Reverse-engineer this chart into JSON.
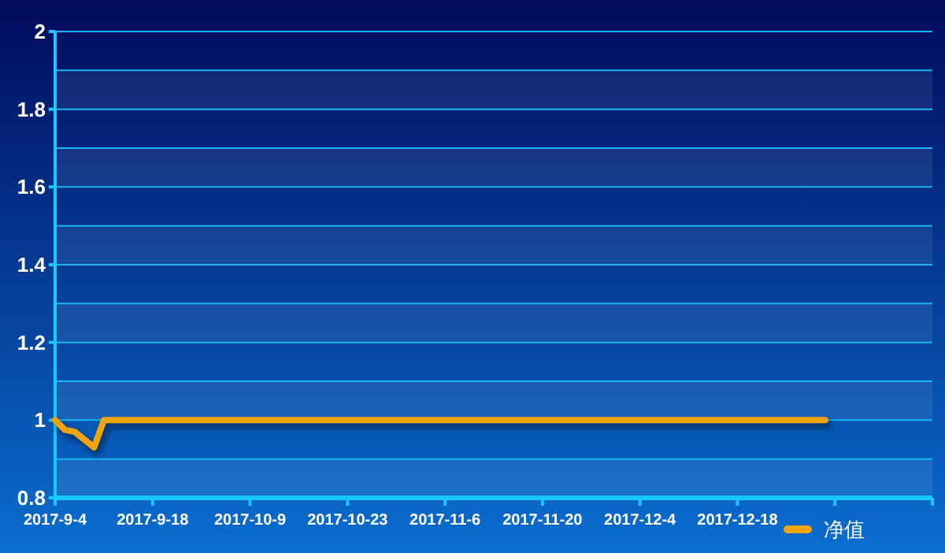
{
  "chart_data": {
    "type": "line",
    "categories": [
      "2017-9-4",
      null,
      null,
      null,
      null,
      null,
      null,
      null,
      null,
      null,
      "2017-9-18",
      null,
      null,
      null,
      null,
      null,
      null,
      null,
      null,
      null,
      "2017-10-9",
      null,
      null,
      null,
      null,
      null,
      null,
      null,
      null,
      null,
      "2017-10-23",
      null,
      null,
      null,
      null,
      null,
      null,
      null,
      null,
      null,
      "2017-11-6",
      null,
      null,
      null,
      null,
      null,
      null,
      null,
      null,
      null,
      "2017-11-20",
      null,
      null,
      null,
      null,
      null,
      null,
      null,
      null,
      null,
      "2017-12-4",
      null,
      null,
      null,
      null,
      null,
      null,
      null,
      null,
      null,
      "2017-12-18",
      null,
      null,
      null,
      null,
      null,
      null,
      null,
      null,
      null,
      null,
      null,
      null,
      null,
      null,
      null,
      null,
      null,
      null,
      null,
      null
    ],
    "series": [
      {
        "name": "净值",
        "color": "#f0a30a",
        "values": [
          1,
          0.975,
          0.97,
          0.95,
          0.93,
          1,
          1,
          1,
          1,
          1,
          1,
          1,
          1,
          1,
          1,
          1,
          1,
          1,
          1,
          1,
          1,
          1,
          1,
          1,
          1,
          1,
          1,
          1,
          1,
          1,
          1,
          1,
          1,
          1,
          1,
          1,
          1,
          1,
          1,
          1,
          1,
          1,
          1,
          1,
          1,
          1,
          1,
          1,
          1,
          1,
          1,
          1,
          1,
          1,
          1,
          1,
          1,
          1,
          1,
          1,
          1,
          1,
          1,
          1,
          1,
          1,
          1,
          1,
          1,
          1,
          1,
          1,
          1,
          1,
          1,
          1,
          1,
          1,
          1,
          1,
          null,
          null,
          null,
          null,
          null,
          null,
          null,
          null,
          null,
          null,
          null
        ]
      }
    ],
    "ylim": [
      0.8,
      2
    ],
    "yticks": [
      0.8,
      {
        "value": 0.9,
        "label": null
      },
      1,
      {
        "value": 1.1,
        "label": null
      },
      1.2,
      {
        "value": 1.3,
        "label": null
      },
      1.4,
      {
        "value": 1.5,
        "label": null
      },
      1.6,
      {
        "value": 1.7,
        "label": null
      },
      1.8,
      {
        "value": 1.9,
        "label": null
      },
      2
    ],
    "grid": true,
    "legend": "bottom right",
    "marker": "none",
    "line_style": "solid"
  }
}
